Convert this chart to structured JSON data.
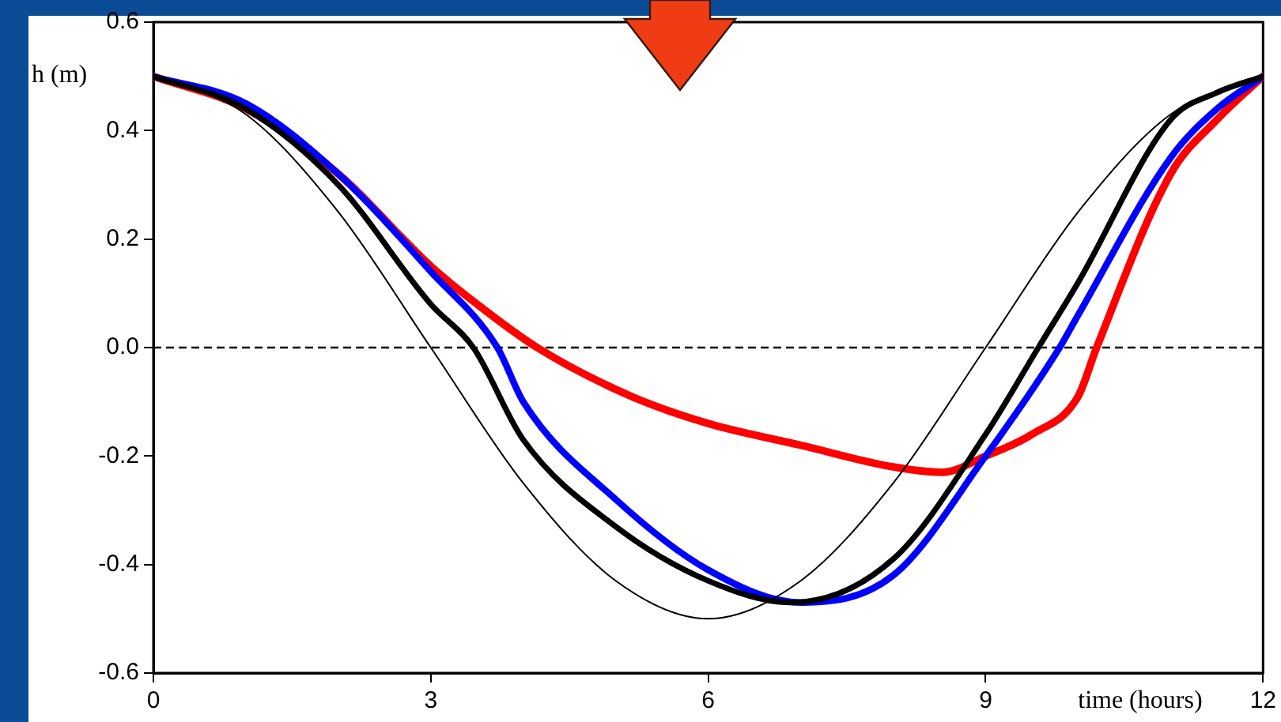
{
  "chart_data": {
    "type": "line",
    "xlabel": "time (hours)",
    "ylabel": "h (m)",
    "xlim": [
      0,
      12
    ],
    "xticks": [
      0,
      3,
      6,
      9,
      12
    ],
    "ylim": [
      -0.6,
      0.6
    ],
    "yticks": [
      -0.6,
      -0.4,
      -0.2,
      {
        "value": 0,
        "label": "0.0"
      },
      0.2,
      0.4,
      0.6
    ],
    "grid": false,
    "legend": false,
    "marker": "none",
    "line_style": "solid",
    "ref_lines": [
      {
        "axis": "y",
        "value": 0,
        "label": null,
        "color": "#000000",
        "line_style": "dashed"
      }
    ],
    "series": [
      {
        "color": "#000000",
        "x": [
          0,
          1,
          2,
          3,
          4,
          5,
          6,
          7,
          8,
          9,
          10,
          11,
          12
        ],
        "values": [
          0.5,
          0.43,
          0.25,
          0,
          -0.25,
          -0.43,
          -0.5,
          -0.43,
          -0.25,
          0,
          0.25,
          0.43,
          0.5
        ]
      },
      {
        "color": "#000000",
        "x": [
          0,
          1,
          2,
          3,
          3.46,
          4,
          5,
          6,
          6.9,
          8,
          9,
          9.57,
          10,
          11,
          11.5,
          12
        ],
        "values": [
          0.5,
          0.44,
          0.3,
          0.08,
          0,
          -0.17,
          -0.33,
          -0.43,
          -0.47,
          -0.39,
          -0.16,
          0,
          0.12,
          0.42,
          0.47,
          0.5
        ]
      },
      {
        "color": "#0000ff",
        "x": [
          0,
          1,
          2,
          3,
          3.72,
          4,
          5,
          6,
          7,
          8,
          9,
          9.8,
          10,
          11,
          11.5,
          12
        ],
        "values": [
          0.5,
          0.45,
          0.32,
          0.14,
          0,
          -0.1,
          -0.28,
          -0.41,
          -0.47,
          -0.42,
          -0.2,
          0,
          0.06,
          0.35,
          0.44,
          0.5
        ]
      },
      {
        "color": "#ff0000",
        "x": [
          0,
          1,
          2,
          3,
          3.5,
          4.15,
          5.17,
          6,
          7,
          8,
          8.53,
          9,
          9.5,
          10,
          10.2,
          11,
          11.5,
          12
        ],
        "values": [
          0.5,
          0.44,
          0.32,
          0.15,
          0.08,
          0,
          -0.09,
          -0.14,
          -0.18,
          -0.22,
          -0.23,
          -0.2,
          -0.16,
          -0.09,
          0,
          0.32,
          0.42,
          0.5
        ]
      }
    ]
  }
}
